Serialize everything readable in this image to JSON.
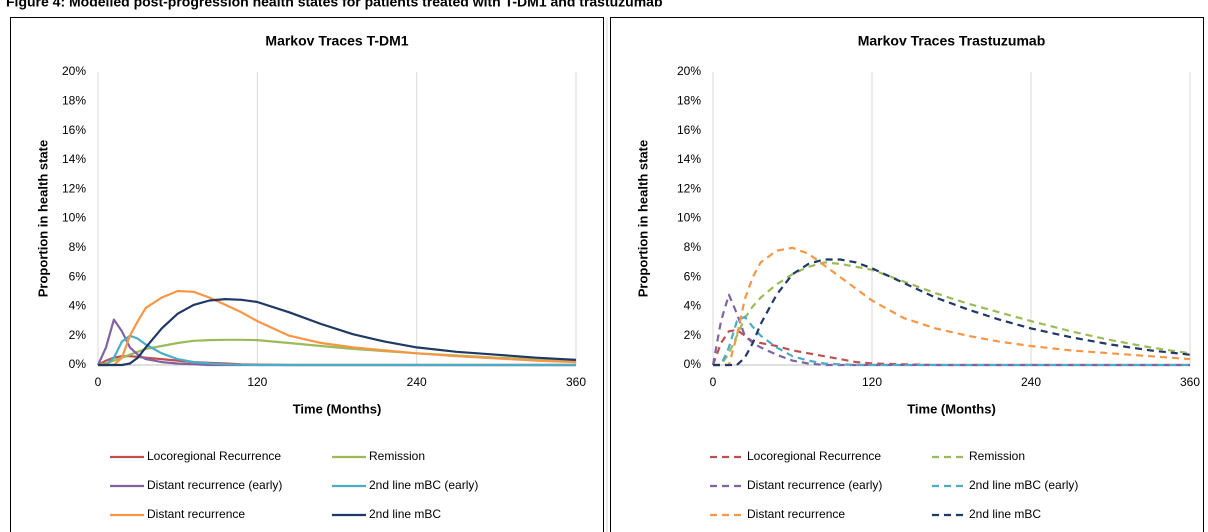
{
  "title": "Figure 4: Modelled post-progression health states for patients treated with T-DM1 and trastuzumab",
  "chart_data": [
    {
      "type": "line",
      "title": "Markov Traces T-DM1",
      "x_label": "Time (Months)",
      "y_label": "Proportion in health state",
      "line_style": "solid",
      "grid": "x",
      "x": [
        0,
        6,
        12,
        18,
        24,
        30,
        36,
        48,
        60,
        72,
        84,
        96,
        108,
        120,
        144,
        168,
        192,
        216,
        240,
        270,
        300,
        330,
        360
      ],
      "xlim": [
        0,
        360
      ],
      "xticks": [
        0,
        120,
        240,
        360
      ],
      "ylim": [
        0,
        20
      ],
      "yticks": [
        {
          "value": 0,
          "label": "0%"
        },
        {
          "value": 2,
          "label": "2%"
        },
        {
          "value": 4,
          "label": "4%"
        },
        {
          "value": 6,
          "label": "6%"
        },
        {
          "value": 8,
          "label": "8%"
        },
        {
          "value": 10,
          "label": "10%"
        },
        {
          "value": 12,
          "label": "12%"
        },
        {
          "value": 14,
          "label": "14%"
        },
        {
          "value": 16,
          "label": "16%"
        },
        {
          "value": 18,
          "label": "18%"
        },
        {
          "value": 20,
          "label": "20%"
        }
      ],
      "series": [
        {
          "name": "Locoregional Recurrence",
          "color": "#c0504d",
          "values": [
            0,
            0.3,
            0.5,
            0.6,
            0.6,
            0.55,
            0.5,
            0.4,
            0.3,
            0.2,
            0.15,
            0.1,
            0.05,
            0.03,
            0,
            0,
            0,
            0,
            0,
            0,
            0,
            0,
            0
          ]
        },
        {
          "name": "Remission",
          "color": "#9bbb59",
          "values": [
            0,
            0.1,
            0.3,
            0.5,
            0.7,
            0.9,
            1.1,
            1.3,
            1.5,
            1.65,
            1.7,
            1.72,
            1.72,
            1.7,
            1.5,
            1.3,
            1.1,
            0.95,
            0.8,
            0.65,
            0.5,
            0.4,
            0.3
          ]
        },
        {
          "name": "Distant recurrence (early)",
          "color": "#8064a2",
          "values": [
            0,
            1.2,
            3.1,
            2.3,
            1.2,
            0.7,
            0.4,
            0.2,
            0.1,
            0.05,
            0,
            0,
            0,
            0,
            0,
            0,
            0,
            0,
            0,
            0,
            0,
            0,
            0
          ]
        },
        {
          "name": "2nd line mBC (early)",
          "color": "#4bacc6",
          "values": [
            0,
            0,
            0.5,
            1.6,
            2.0,
            1.8,
            1.4,
            0.8,
            0.4,
            0.2,
            0.1,
            0.05,
            0.02,
            0,
            0,
            0,
            0,
            0,
            0,
            0,
            0,
            0,
            0
          ]
        },
        {
          "name": "Distant recurrence",
          "color": "#f79646",
          "values": [
            0,
            0,
            0,
            0.5,
            2.0,
            3.0,
            3.9,
            4.6,
            5.05,
            5.0,
            4.6,
            4.1,
            3.6,
            3.0,
            2.0,
            1.5,
            1.2,
            1.0,
            0.8,
            0.6,
            0.45,
            0.3,
            0.2
          ]
        },
        {
          "name": "2nd line mBC",
          "color": "#1f3864",
          "values": [
            0,
            0,
            0,
            0,
            0.1,
            0.5,
            1.2,
            2.5,
            3.5,
            4.1,
            4.4,
            4.5,
            4.45,
            4.3,
            3.6,
            2.8,
            2.1,
            1.6,
            1.2,
            0.9,
            0.7,
            0.5,
            0.35
          ]
        }
      ]
    },
    {
      "type": "line",
      "title": "Markov Traces Trastuzumab",
      "x_label": "Time (Months)",
      "y_label": "Proportion in health state",
      "line_style": "dashed",
      "grid": "x",
      "x": [
        0,
        6,
        12,
        18,
        24,
        30,
        36,
        48,
        60,
        72,
        84,
        96,
        108,
        120,
        144,
        168,
        192,
        216,
        240,
        270,
        300,
        330,
        360
      ],
      "xlim": [
        0,
        360
      ],
      "xticks": [
        0,
        120,
        240,
        360
      ],
      "ylim": [
        0,
        20
      ],
      "yticks": [
        {
          "value": 0,
          "label": "0%"
        },
        {
          "value": 2,
          "label": "2%"
        },
        {
          "value": 4,
          "label": "4%"
        },
        {
          "value": 6,
          "label": "6%"
        },
        {
          "value": 8,
          "label": "8%"
        },
        {
          "value": 10,
          "label": "10%"
        },
        {
          "value": 12,
          "label": "12%"
        },
        {
          "value": 14,
          "label": "14%"
        },
        {
          "value": 16,
          "label": "16%"
        },
        {
          "value": 18,
          "label": "18%"
        },
        {
          "value": 20,
          "label": "20%"
        }
      ],
      "series": [
        {
          "name": "Locoregional Recurrence",
          "color": "#c0504d",
          "values": [
            0,
            1.5,
            2.3,
            2.4,
            2.0,
            1.6,
            1.5,
            1.3,
            1.0,
            0.8,
            0.6,
            0.4,
            0.2,
            0.1,
            0.05,
            0,
            0,
            0,
            0,
            0,
            0,
            0,
            0
          ]
        },
        {
          "name": "Remission",
          "color": "#9bbb59",
          "values": [
            0,
            0,
            0.8,
            2.0,
            3.2,
            4.0,
            4.6,
            5.5,
            6.2,
            6.7,
            7.0,
            6.9,
            6.7,
            6.5,
            5.7,
            4.9,
            4.2,
            3.6,
            3.0,
            2.3,
            1.7,
            1.2,
            0.8
          ]
        },
        {
          "name": "Distant recurrence (early)",
          "color": "#8064a2",
          "values": [
            0,
            3.0,
            4.8,
            3.5,
            2.0,
            1.5,
            1.2,
            0.7,
            0.3,
            0.1,
            0,
            0,
            0,
            0,
            0,
            0,
            0,
            0,
            0,
            0,
            0,
            0,
            0
          ]
        },
        {
          "name": "2nd line mBC (early)",
          "color": "#4bacc6",
          "values": [
            0,
            0,
            1.2,
            3.0,
            3.3,
            2.6,
            2.0,
            1.2,
            0.6,
            0.3,
            0.1,
            0.05,
            0,
            0,
            0,
            0,
            0,
            0,
            0,
            0,
            0,
            0,
            0
          ]
        },
        {
          "name": "Distant recurrence",
          "color": "#f79646",
          "values": [
            0,
            0,
            0,
            2.0,
            4.5,
            6.0,
            7.0,
            7.8,
            8.0,
            7.6,
            6.8,
            6.0,
            5.2,
            4.4,
            3.2,
            2.5,
            2.0,
            1.6,
            1.3,
            1.0,
            0.8,
            0.6,
            0.4
          ]
        },
        {
          "name": "2nd line mBC",
          "color": "#1f3864",
          "values": [
            0,
            0,
            0,
            0,
            0.5,
            1.5,
            2.8,
            4.8,
            6.2,
            6.9,
            7.2,
            7.2,
            7.0,
            6.6,
            5.6,
            4.6,
            3.8,
            3.1,
            2.5,
            1.9,
            1.4,
            1.0,
            0.7
          ]
        }
      ]
    }
  ]
}
